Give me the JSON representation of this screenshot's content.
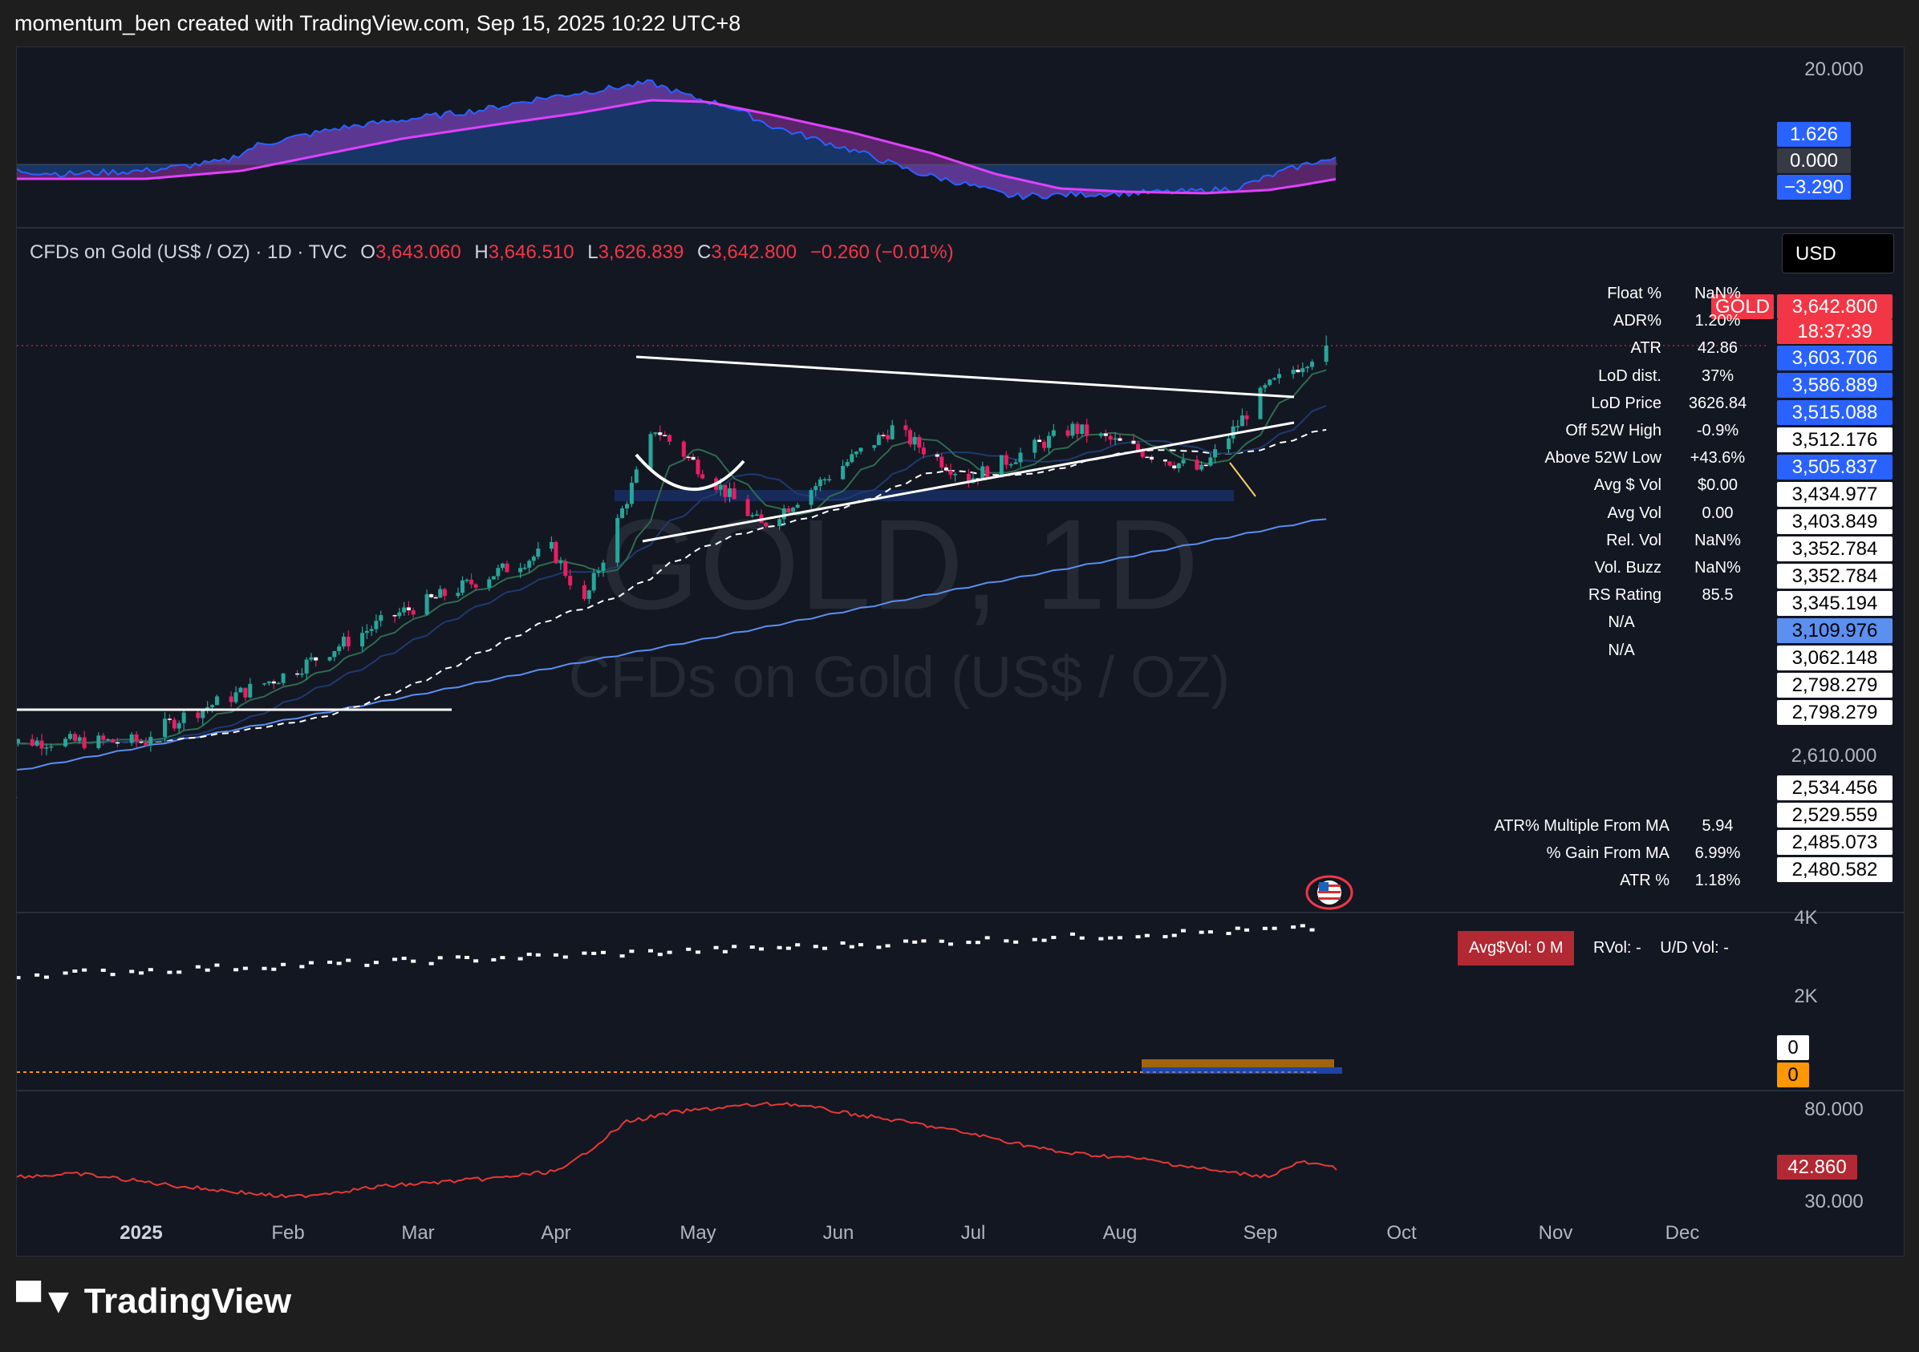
{
  "header": {
    "text": "momentum_ben created with TradingView.com, Sep 15, 2025 10:22 UTC+8"
  },
  "symbol_line": {
    "name": "CFDs on Gold (US$ / OZ) · 1D · TVC",
    "open_k": "O",
    "open": "3,643.060",
    "high_k": "H",
    "high": "3,646.510",
    "low_k": "L",
    "low": "3,626.839",
    "close_k": "C",
    "close": "3,642.800",
    "change": "−0.260 (−0.01%)"
  },
  "currency_button": "USD",
  "watermark": {
    "ticker": "GOLD, 1D",
    "name": "CFDs on Gold (US$ / OZ)"
  },
  "price_tags": {
    "symbol": "GOLD",
    "last": "3,642.800",
    "countdown": "18:37:39",
    "levels": [
      {
        "text": "3,603.706",
        "bg": "#2962ff",
        "fg": "#ffffff"
      },
      {
        "text": "3,586.889",
        "bg": "#2962ff",
        "fg": "#ffffff"
      },
      {
        "text": "3,515.088",
        "bg": "#2962ff",
        "fg": "#ffffff"
      },
      {
        "text": "3,512.176",
        "bg": "#ffffff",
        "fg": "#000000"
      },
      {
        "text": "3,505.837",
        "bg": "#2962ff",
        "fg": "#ffffff"
      },
      {
        "text": "3,434.977",
        "bg": "#ffffff",
        "fg": "#000000"
      },
      {
        "text": "3,403.849",
        "bg": "#ffffff",
        "fg": "#000000"
      },
      {
        "text": "3,352.784",
        "bg": "#ffffff",
        "fg": "#000000"
      },
      {
        "text": "3,352.784",
        "bg": "#ffffff",
        "fg": "#000000"
      },
      {
        "text": "3,345.194",
        "bg": "#ffffff",
        "fg": "#000000"
      },
      {
        "text": "3,109.976",
        "bg": "#5b8ff0",
        "fg": "#000000"
      },
      {
        "text": "3,062.148",
        "bg": "#ffffff",
        "fg": "#000000"
      },
      {
        "text": "2,798.279",
        "bg": "#ffffff",
        "fg": "#000000"
      },
      {
        "text": "2,798.279",
        "bg": "#ffffff",
        "fg": "#000000"
      }
    ],
    "axis_2610": "2,610.000",
    "lower_levels": [
      "2,534.456",
      "2,529.559",
      "2,485.073",
      "2,480.582"
    ]
  },
  "top_panel": {
    "axis_20": "20.000",
    "tag_1": "1.626",
    "tag_0": "0.000",
    "tag_neg": "−3.290"
  },
  "stats_table": [
    {
      "label": "Float %",
      "value": "NaN%"
    },
    {
      "label": "ADR%",
      "value": "1.20%"
    },
    {
      "label": "ATR",
      "value": "42.86"
    },
    {
      "label": "LoD dist.",
      "value": "37%"
    },
    {
      "label": "LoD Price",
      "value": "3626.84"
    },
    {
      "label": "Off 52W High",
      "value": "-0.9%"
    },
    {
      "label": "Above 52W Low",
      "value": "+43.6%"
    },
    {
      "label": "Avg $ Vol",
      "value": "$0.00"
    },
    {
      "label": "Avg Vol",
      "value": "0.00"
    },
    {
      "label": "Rel. Vol",
      "value": "NaN%"
    },
    {
      "label": "Vol. Buzz",
      "value": "NaN%"
    },
    {
      "label": "RS Rating",
      "value": "85.5"
    },
    {
      "label": "N/A",
      "value": ""
    },
    {
      "label": "N/A",
      "value": ""
    }
  ],
  "atr_table": [
    {
      "label": "ATR% Multiple From MA",
      "value": "5.94"
    },
    {
      "label": "% Gain From MA",
      "value": "6.99%"
    },
    {
      "label": "ATR %",
      "value": "1.18%"
    }
  ],
  "volume_panel": {
    "avg_dollar_vol": "Avg$Vol: 0 M",
    "rvol": "RVol: -",
    "ud_vol": "U/D Vol: -",
    "axis_4k": "4K",
    "axis_2k": "2K",
    "tag_0_white": "0",
    "tag_0_orange": "0"
  },
  "atr_panel": {
    "axis_80": "80.000",
    "axis_30": "30.000",
    "tag": "42.860"
  },
  "time_axis": [
    "2025",
    "Feb",
    "Mar",
    "Apr",
    "May",
    "Jun",
    "Jul",
    "Aug",
    "Sep",
    "Oct",
    "Nov",
    "Dec"
  ],
  "colors": {
    "up": "#26a69a",
    "down": "#e91e63",
    "bg": "#131722",
    "pink_line": "#e040fb",
    "blue_line": "#2962ff",
    "red_line": "#e53935"
  },
  "footer": {
    "logo_text": "TradingView"
  },
  "chart_data": {
    "type": "candlestick",
    "title": "CFDs on Gold (US$ / OZ) · 1D · TVC",
    "x_range": [
      "2025-01-02",
      "2025-09-15"
    ],
    "ylabel": "USD",
    "key_points": [
      {
        "date": "2025-01-02",
        "close": 2640
      },
      {
        "date": "2025-01-10",
        "close": 2690
      },
      {
        "date": "2025-02-01",
        "close": 2800
      },
      {
        "date": "2025-02-24",
        "close": 2950
      },
      {
        "date": "2025-03-31",
        "close": 3120
      },
      {
        "date": "2025-04-07",
        "close": 2980
      },
      {
        "date": "2025-04-22",
        "close": 3430
      },
      {
        "date": "2025-05-15",
        "close": 3180
      },
      {
        "date": "2025-06-13",
        "close": 3430
      },
      {
        "date": "2025-06-30",
        "close": 3300
      },
      {
        "date": "2025-07-22",
        "close": 3430
      },
      {
        "date": "2025-08-19",
        "close": 3320
      },
      {
        "date": "2025-09-02",
        "close": 3530
      },
      {
        "date": "2025-09-15",
        "close": 3642.8
      }
    ]
  }
}
